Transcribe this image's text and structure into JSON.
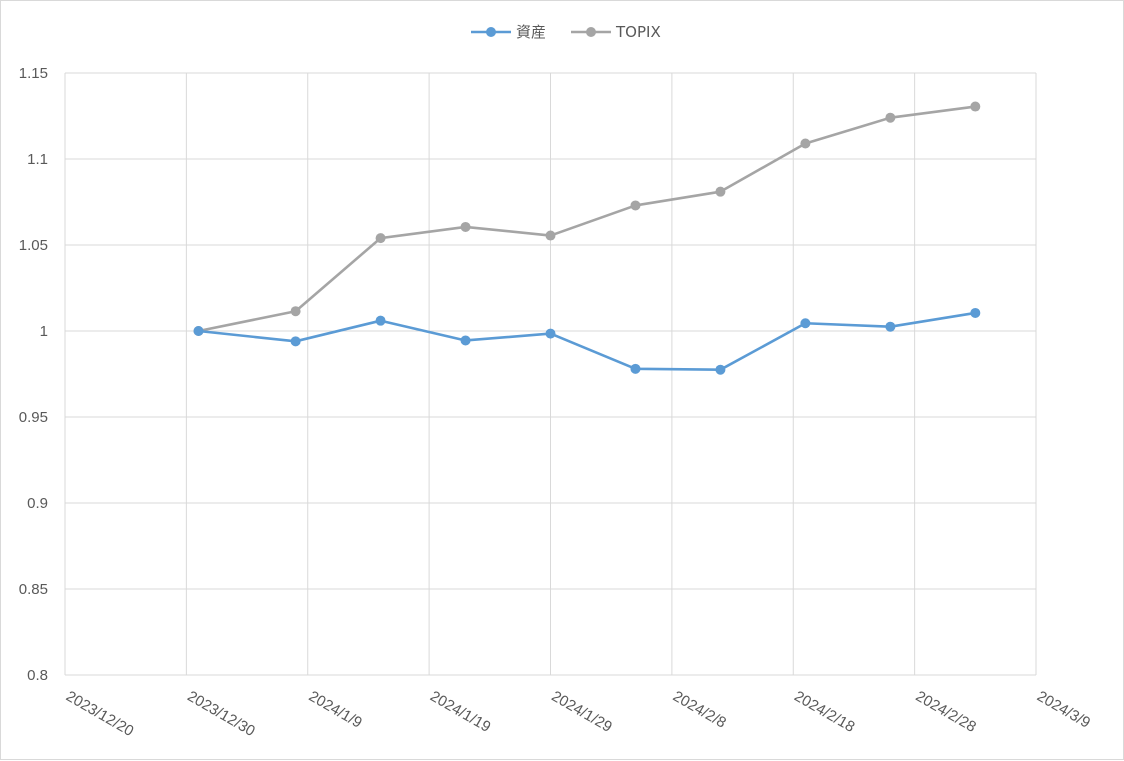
{
  "chart_data": {
    "type": "line",
    "title": "",
    "xlabel": "",
    "ylabel": "",
    "x_ticks": [
      "2023/12/20",
      "2023/12/30",
      "2024/1/9",
      "2024/1/19",
      "2024/1/29",
      "2024/2/8",
      "2024/2/18",
      "2024/2/28",
      "2024/3/9"
    ],
    "xlim": [
      "2023-12-20",
      "2024-03-09"
    ],
    "y_ticks": [
      "1.15",
      "1.1",
      "1.05",
      "1",
      "0.95",
      "0.9",
      "0.85",
      "0.8"
    ],
    "ylim": [
      0.8,
      1.15
    ],
    "grid": true,
    "legend_position": "top-center",
    "x": [
      "2023-12-31",
      "2024-01-08",
      "2024-01-15",
      "2024-01-22",
      "2024-01-29",
      "2024-02-05",
      "2024-02-12",
      "2024-02-19",
      "2024-02-26",
      "2024-03-04"
    ],
    "series": [
      {
        "name": "資産",
        "color": "#5b9bd5",
        "values": [
          1.0,
          0.994,
          1.006,
          0.9945,
          0.9985,
          0.978,
          0.9775,
          1.0045,
          1.0025,
          1.0105
        ]
      },
      {
        "name": "TOPIX",
        "color": "#a5a5a5",
        "values": [
          1.0,
          1.0115,
          1.054,
          1.0605,
          1.0555,
          1.073,
          1.081,
          1.109,
          1.124,
          1.1305
        ]
      }
    ]
  }
}
